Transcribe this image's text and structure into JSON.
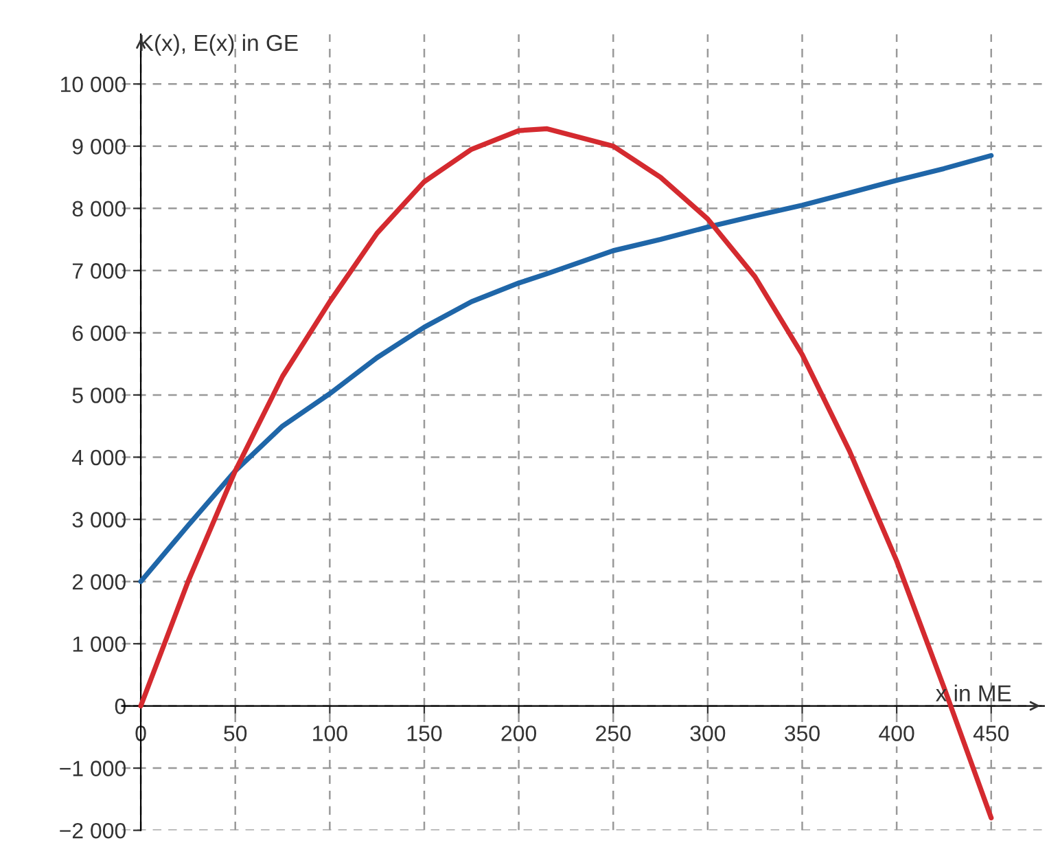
{
  "chart_data": {
    "type": "line",
    "xlabel": "x in ME",
    "ylabel": "K(x), E(x) in GE",
    "xlim": [
      -10,
      478
    ],
    "ylim": [
      -2000,
      10800
    ],
    "xticks": [
      0,
      50,
      100,
      150,
      200,
      250,
      300,
      350,
      400,
      450
    ],
    "yticks": [
      {
        "value": -2000,
        "label": "−2 000"
      },
      {
        "value": -1000,
        "label": "−1 000"
      },
      0,
      {
        "value": 1000,
        "label": "1 000"
      },
      {
        "value": 2000,
        "label": "2 000"
      },
      {
        "value": 3000,
        "label": "3 000"
      },
      {
        "value": 4000,
        "label": "4 000"
      },
      {
        "value": 5000,
        "label": "5 000"
      },
      {
        "value": 6000,
        "label": "6 000"
      },
      {
        "value": 7000,
        "label": "7 000"
      },
      {
        "value": 8000,
        "label": "8 000"
      },
      {
        "value": 9000,
        "label": "9 000"
      },
      {
        "value": 10000,
        "label": "10 000"
      }
    ],
    "grid": true,
    "line_style": "solid",
    "marker": "none",
    "x": [
      0,
      25,
      50,
      75,
      100,
      125,
      150,
      175,
      200,
      215,
      250,
      275,
      300,
      325,
      350,
      375,
      400,
      425,
      450
    ],
    "series": [
      {
        "color": "#1f66a8",
        "values": [
          2000,
          2900,
          3780,
          4500,
          5020,
          5600,
          6090,
          6500,
          6800,
          6950,
          7320,
          7500,
          7700,
          7880,
          8050,
          8250,
          8450,
          8640,
          8850
        ]
      },
      {
        "color": "#d42a2f",
        "values": [
          0,
          2000,
          3780,
          5300,
          6500,
          7600,
          8430,
          8950,
          9250,
          9280,
          9000,
          8500,
          7830,
          6900,
          5650,
          4100,
          2330,
          300,
          -1800
        ]
      }
    ]
  }
}
